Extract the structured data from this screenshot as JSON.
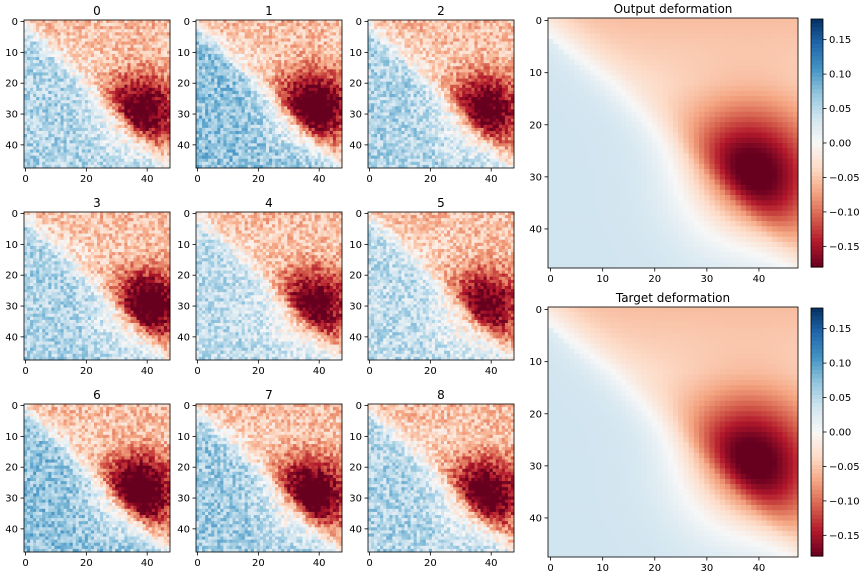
{
  "figure": {
    "small_titles": [
      "0",
      "1",
      "2",
      "3",
      "4",
      "5",
      "6",
      "7",
      "8"
    ],
    "small_xticks": [
      "0",
      "20",
      "40"
    ],
    "small_yticks": [
      "0",
      "10",
      "20",
      "30",
      "40"
    ],
    "big_titles": [
      "Output deformation",
      "Target deformation"
    ],
    "big_xticks": [
      "0",
      "10",
      "20",
      "30",
      "40"
    ],
    "big_yticks": [
      "0",
      "10",
      "20",
      "30",
      "40"
    ],
    "colorbar_ticks": [
      "0.15",
      "0.10",
      "0.05",
      "0.00",
      "−0.05",
      "−0.10",
      "−0.15"
    ]
  },
  "chart_data": {
    "type": "heatmap",
    "colormap": "RdBu",
    "grid_size": [
      48,
      48
    ],
    "value_range": [
      -0.18,
      0.18
    ],
    "panels": [
      {
        "title": "0",
        "peak_center": [
          38,
          29
        ],
        "peak_value": -0.17,
        "blue_value": 0.06
      },
      {
        "title": "1",
        "peak_center": [
          38,
          28
        ],
        "peak_value": -0.19,
        "blue_value": 0.08
      },
      {
        "title": "2",
        "peak_center": [
          38,
          29
        ],
        "peak_value": -0.17,
        "blue_value": 0.06
      },
      {
        "title": "3",
        "peak_center": [
          40,
          30
        ],
        "peak_value": -0.18,
        "blue_value": 0.06
      },
      {
        "title": "4",
        "peak_center": [
          38,
          30
        ],
        "peak_value": -0.17,
        "blue_value": 0.05
      },
      {
        "title": "5",
        "peak_center": [
          38,
          30
        ],
        "peak_value": -0.16,
        "blue_value": 0.05
      },
      {
        "title": "6",
        "peak_center": [
          37,
          28
        ],
        "peak_value": -0.2,
        "blue_value": 0.08
      },
      {
        "title": "7",
        "peak_center": [
          37,
          29
        ],
        "peak_value": -0.19,
        "blue_value": 0.07
      },
      {
        "title": "8",
        "peak_center": [
          38,
          29
        ],
        "peak_value": -0.18,
        "blue_value": 0.06
      },
      {
        "title": "Output deformation",
        "peak_center": [
          38,
          30
        ],
        "peak_value": -0.17,
        "blue_value": 0.04,
        "colorbar": [
          -0.18,
          0.18
        ]
      },
      {
        "title": "Target deformation",
        "peak_center": [
          38,
          30
        ],
        "peak_value": -0.17,
        "blue_value": 0.04,
        "colorbar": [
          -0.18,
          0.18
        ]
      }
    ]
  }
}
